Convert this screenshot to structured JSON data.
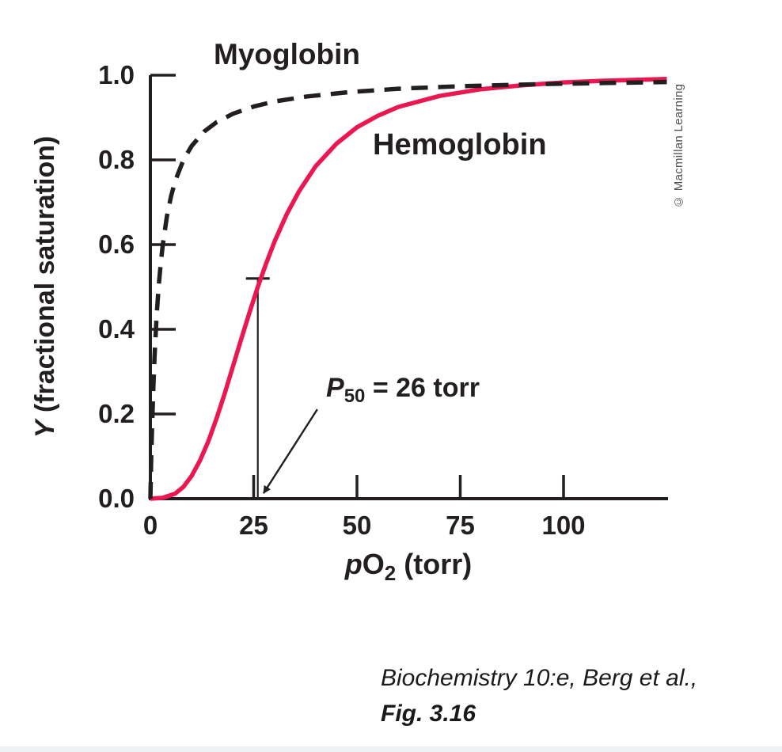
{
  "figure": {
    "myoglobin_label": "Myoglobin",
    "hemoglobin_label": "Hemoglobin",
    "annotation": {
      "prefix_italic": "P",
      "subscript": "50",
      "suffix": " = 26 torr"
    },
    "y_axis_title": {
      "italic": "Y",
      "rest": " (fractional saturation)"
    },
    "x_axis_title": {
      "italic": "p",
      "main": "O",
      "subscript": "2",
      "rest": " (torr)"
    },
    "copyright": "© Macmillan Learning",
    "caption": {
      "line1": "Biochemistry 10:e, Berg et al.,",
      "line2": "Fig. 3.16"
    }
  },
  "colors": {
    "ink": "#231f20",
    "hemoglobin_red": "#ea1750",
    "copyright_gray": "#4f4f4f"
  },
  "chart_data": {
    "type": "line",
    "title": "",
    "xlabel": "pO2 (torr)",
    "ylabel": "Y (fractional saturation)",
    "xlim": [
      0,
      125
    ],
    "ylim": [
      0,
      1.0
    ],
    "x_ticks": [
      0,
      25,
      50,
      75,
      100
    ],
    "y_ticks": [
      0.0,
      0.2,
      0.4,
      0.6,
      0.8,
      1.0
    ],
    "grid": false,
    "legend_position": "labels-on-curves",
    "series": [
      {
        "name": "Myoglobin",
        "style": "dashed",
        "color": "#231f20",
        "model": "hyperbolic, Y = pO2/(pO2+K), K ~ 2 torr",
        "points": [
          [
            0,
            0
          ],
          [
            0.2,
            0.091
          ],
          [
            0.4,
            0.167
          ],
          [
            0.7,
            0.259
          ],
          [
            1,
            0.333
          ],
          [
            1.5,
            0.429
          ],
          [
            2,
            0.5
          ],
          [
            2.5,
            0.556
          ],
          [
            3,
            0.6
          ],
          [
            4,
            0.667
          ],
          [
            5,
            0.714
          ],
          [
            6,
            0.75
          ],
          [
            8,
            0.8
          ],
          [
            10,
            0.833
          ],
          [
            13,
            0.867
          ],
          [
            16,
            0.889
          ],
          [
            20,
            0.909
          ],
          [
            25,
            0.926
          ],
          [
            30,
            0.938
          ],
          [
            38,
            0.95
          ],
          [
            48,
            0.96
          ],
          [
            60,
            0.968
          ],
          [
            75,
            0.974
          ],
          [
            95,
            0.979
          ],
          [
            125,
            0.984
          ]
        ]
      },
      {
        "name": "Hemoglobin",
        "style": "solid",
        "color": "#ea1750",
        "model": "sigmoidal (Hill n ~ 3), P50 = 26 torr",
        "points": [
          [
            0,
            0
          ],
          [
            3,
            0.002
          ],
          [
            6,
            0.012
          ],
          [
            8,
            0.028
          ],
          [
            10,
            0.054
          ],
          [
            12,
            0.09
          ],
          [
            14,
            0.135
          ],
          [
            16,
            0.189
          ],
          [
            18,
            0.249
          ],
          [
            20,
            0.313
          ],
          [
            22,
            0.377
          ],
          [
            24,
            0.44
          ],
          [
            26,
            0.5
          ],
          [
            28,
            0.555
          ],
          [
            30,
            0.606
          ],
          [
            33,
            0.672
          ],
          [
            36,
            0.726
          ],
          [
            40,
            0.785
          ],
          [
            45,
            0.838
          ],
          [
            50,
            0.877
          ],
          [
            55,
            0.904
          ],
          [
            60,
            0.925
          ],
          [
            70,
            0.951
          ],
          [
            80,
            0.967
          ],
          [
            90,
            0.976
          ],
          [
            100,
            0.983
          ],
          [
            110,
            0.987
          ],
          [
            125,
            0.991
          ]
        ]
      }
    ],
    "annotations": [
      {
        "text": "P50 = 26 torr",
        "marker_x": 26,
        "marker_y_top": 0.52,
        "arrow_from": [
          40.4,
          0.211
        ],
        "arrow_to": [
          27.4,
          0.013
        ]
      }
    ]
  }
}
